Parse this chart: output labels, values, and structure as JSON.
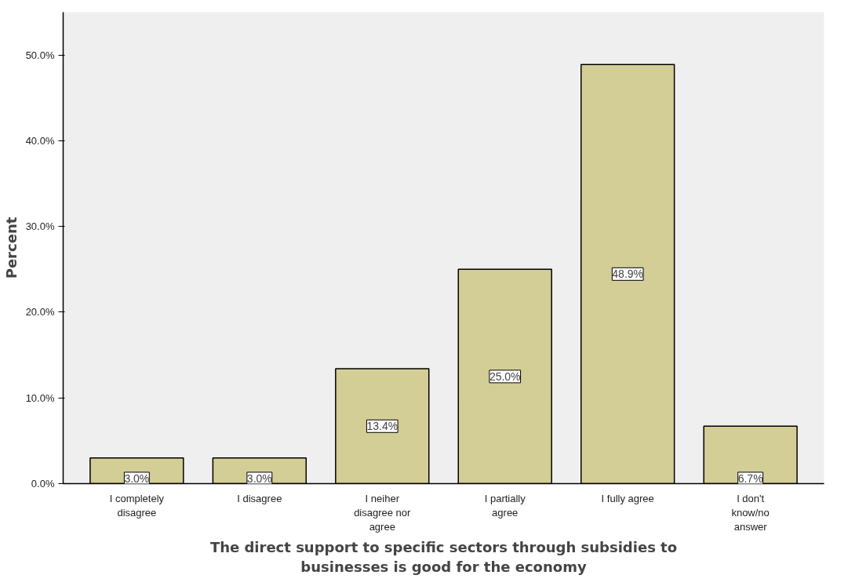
{
  "chart_data": {
    "type": "bar",
    "xlabel": "The direct support to specific sectors through subsidies to businesses is good for the economy",
    "ylabel": "Percent",
    "categories": [
      "I completely disagree",
      "I disagree",
      "I neiher disagree nor agree",
      "I partially agree",
      "I fully agree",
      "I don't know/no answer"
    ],
    "values": [
      3.0,
      3.0,
      13.4,
      25.0,
      48.9,
      6.7
    ],
    "value_labels": [
      "3.0%",
      "3.0%",
      "13.4%",
      "25.0%",
      "48.9%",
      "6.7%"
    ],
    "color": "#d3cd96",
    "ylim": [
      0,
      55
    ],
    "yticks": [
      {
        "value": 0,
        "label": "0.0%"
      },
      {
        "value": 10,
        "label": "10.0%"
      },
      {
        "value": 20,
        "label": "20.0%"
      },
      {
        "value": 30,
        "label": "30.0%"
      },
      {
        "value": 40,
        "label": "40.0%"
      },
      {
        "value": 50,
        "label": "50.0%"
      }
    ],
    "grid": false
  }
}
